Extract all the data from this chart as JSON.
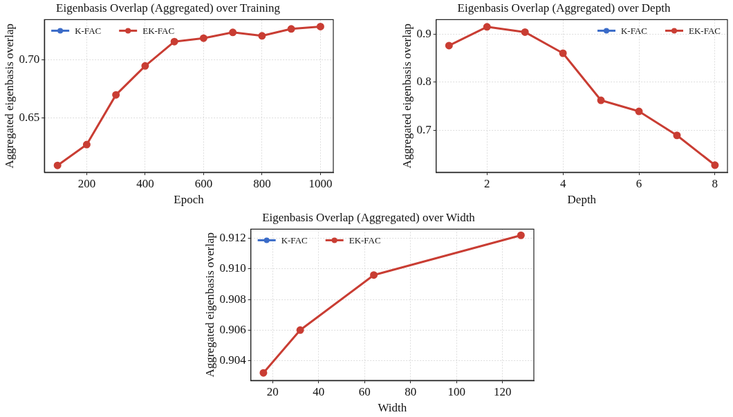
{
  "chart_data": [
    {
      "type": "line",
      "title": "Eigenbasis Overlap (Aggregated) over Training",
      "xlabel": "Epoch",
      "ylabel": "Aggregated eigenbasis overlap",
      "x": [
        100,
        200,
        300,
        400,
        500,
        600,
        700,
        800,
        900,
        1000
      ],
      "series": [
        {
          "name": "K-FAC",
          "color": "#3a6bc8",
          "values": [
            null,
            null,
            null,
            null,
            null,
            null,
            null,
            null,
            null,
            null
          ]
        },
        {
          "name": "EK-FAC",
          "color": "#c93d33",
          "values": [
            0.609,
            0.627,
            0.67,
            0.695,
            0.716,
            0.719,
            0.724,
            0.721,
            0.727,
            0.729
          ]
        }
      ],
      "xlim": [
        55,
        1044
      ],
      "ylim": [
        0.603,
        0.735
      ],
      "xticks": [
        200,
        400,
        600,
        800,
        1000
      ],
      "yticks": [
        {
          "value": 0.65,
          "label": "0.65"
        },
        {
          "value": 0.7,
          "label": "0.70"
        }
      ],
      "grid": true,
      "legend": "top left",
      "marker": "circle",
      "line_style": "solid"
    },
    {
      "type": "line",
      "title": "Eigenbasis Overlap (Aggregated) over Depth",
      "xlabel": "Depth",
      "ylabel": "Aggregated eigenbasis overlap",
      "x": [
        1,
        2,
        3,
        4,
        5,
        6,
        7,
        8
      ],
      "series": [
        {
          "name": "K-FAC",
          "color": "#3a6bc8",
          "values": [
            null,
            null,
            null,
            null,
            null,
            null,
            null,
            null
          ]
        },
        {
          "name": "EK-FAC",
          "color": "#c93d33",
          "values": [
            0.876,
            0.915,
            0.904,
            0.86,
            0.762,
            0.739,
            0.689,
            0.627
          ]
        }
      ],
      "xlim": [
        0.66,
        8.33
      ],
      "ylim": [
        0.612,
        0.93
      ],
      "xticks": [
        2,
        4,
        6,
        8
      ],
      "yticks": [
        0.7,
        0.8,
        0.9
      ],
      "grid": true,
      "legend": "top right",
      "marker": "circle",
      "line_style": "solid"
    },
    {
      "type": "line",
      "title": "Eigenbasis Overlap (Aggregated) over Width",
      "xlabel": "Width",
      "ylabel": "Aggregated eigenbasis overlap",
      "x": [
        16,
        32,
        64,
        128
      ],
      "series": [
        {
          "name": "K-FAC",
          "color": "#3a6bc8",
          "values": [
            null,
            null,
            null,
            null
          ]
        },
        {
          "name": "EK-FAC",
          "color": "#c93d33",
          "values": [
            0.9032,
            0.906,
            0.9096,
            0.9122
          ]
        }
      ],
      "xlim": [
        10.5,
        133.6
      ],
      "ylim": [
        0.9027,
        0.9126
      ],
      "xticks": [
        20,
        40,
        60,
        80,
        100,
        120
      ],
      "yticks": [
        0.904,
        0.906,
        0.908,
        {
          "value": 0.91,
          "label": "0.910"
        },
        0.912
      ],
      "grid": true,
      "legend": "top left",
      "marker": "circle",
      "line_style": "solid"
    }
  ]
}
